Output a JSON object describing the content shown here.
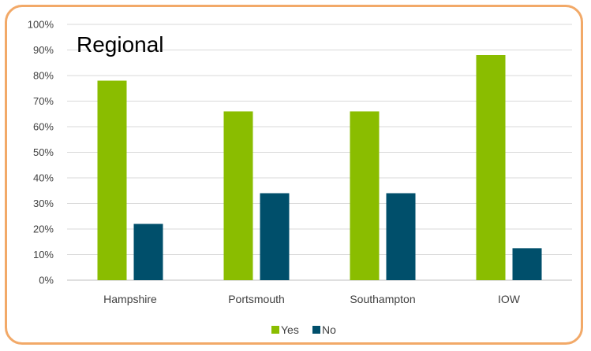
{
  "chart_data": {
    "type": "bar",
    "title": "Regional",
    "categories": [
      "Hampshire",
      "Portsmouth",
      "Southampton",
      "IOW"
    ],
    "series": [
      {
        "name": "Yes",
        "color": "#8abd00",
        "values": [
          78,
          66,
          66,
          88
        ]
      },
      {
        "name": "No",
        "color": "#004f6b",
        "values": [
          22,
          34,
          34,
          12.5
        ]
      }
    ],
    "ylim": [
      0,
      100
    ],
    "yticks": [
      "0%",
      "10%",
      "20%",
      "30%",
      "40%",
      "50%",
      "60%",
      "70%",
      "80%",
      "90%",
      "100%"
    ],
    "grid": true,
    "legend_position": "bottom",
    "xlabel": "",
    "ylabel": ""
  }
}
